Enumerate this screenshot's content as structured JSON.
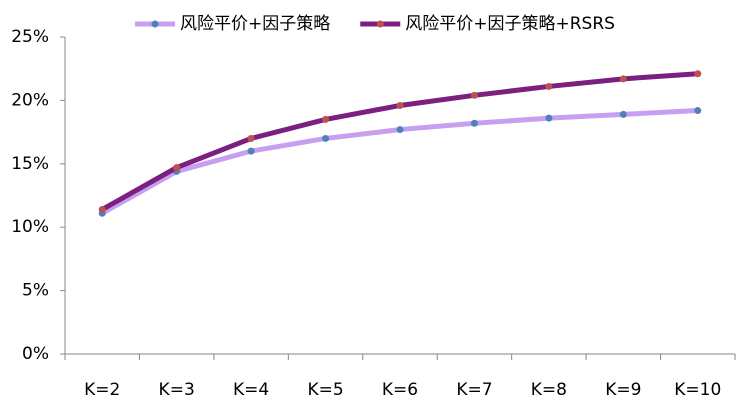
{
  "chart_data": {
    "type": "line",
    "categories": [
      "K=2",
      "K=3",
      "K=4",
      "K=5",
      "K=6",
      "K=7",
      "K=8",
      "K=9",
      "K=10"
    ],
    "series": [
      {
        "name": "风险平价+因子策略",
        "color": "#c79ff0",
        "marker_color": "#4f81bd",
        "values": [
          11.1,
          14.4,
          16.0,
          17.0,
          17.7,
          18.2,
          18.6,
          18.9,
          19.2
        ]
      },
      {
        "name": "风险平价+因子策略+RSRS",
        "color": "#7b1f80",
        "marker_color": "#c0504d",
        "values": [
          11.4,
          14.7,
          17.0,
          18.5,
          19.6,
          20.4,
          21.1,
          21.7,
          22.1
        ]
      }
    ],
    "ylim": [
      0,
      25
    ],
    "yticks": [
      {
        "value": 0,
        "label": "0%"
      },
      {
        "value": 5,
        "label": "5%"
      },
      {
        "value": 10,
        "label": "10%"
      },
      {
        "value": 15,
        "label": "15%"
      },
      {
        "value": 20,
        "label": "20%"
      },
      {
        "value": 25,
        "label": "25%"
      }
    ],
    "grid": false,
    "legend": "top"
  }
}
